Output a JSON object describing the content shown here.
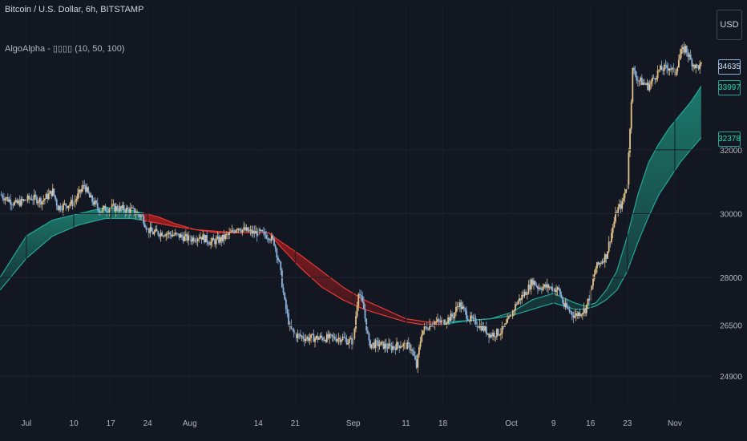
{
  "header": {
    "title": "Bitcoin / U.S. Dollar, 6h, BITSTAMP",
    "indicator": "AlgoAlpha - ▯▯▯▯ (10, 50, 100)",
    "currency_button": "USD"
  },
  "colors": {
    "background": "#131722",
    "candle_up": "#e3c38a",
    "candle_down": "#8fb4de",
    "bull_band": "#26a69a",
    "bull_fill": "#1e8f7c",
    "bear_band": "#e53935",
    "bear_fill": "#b71c1c",
    "text": "#b2b5be"
  },
  "price_tags": [
    {
      "label": "34635",
      "color": "#cfe1f7",
      "border": "#8fb4de",
      "value": 34635
    },
    {
      "label": "33997",
      "color": "#26d9a8",
      "border": "#26a69a",
      "value": 33997
    },
    {
      "label": "32378",
      "color": "#26d9a8",
      "border": "#26a69a",
      "value": 32378
    }
  ],
  "chart_data": {
    "type": "candlestick",
    "title": "Bitcoin / U.S. Dollar, 6h, BITSTAMP",
    "y_axis": {
      "ticks": [
        24900,
        26500,
        28000,
        30000,
        32000
      ],
      "tick_labels": [
        "24900",
        "26500",
        "28000",
        "30000",
        "32000"
      ],
      "ylim": [
        24000,
        36500
      ],
      "position": "right"
    },
    "x_axis": {
      "tick_labels": [
        "Jul",
        "10",
        "17",
        "24",
        "Aug",
        "14",
        "21",
        "Sep",
        "11",
        "18",
        "Oct",
        "9",
        "16",
        "23",
        "Nov"
      ],
      "tick_days": [
        0,
        9,
        16,
        23,
        31,
        44,
        51,
        62,
        72,
        79,
        92,
        100,
        107,
        114,
        123
      ],
      "range_days": [
        -5,
        130
      ]
    },
    "close_path": [
      [
        -5,
        30600
      ],
      [
        -2,
        30300
      ],
      [
        1,
        30500
      ],
      [
        3,
        30400
      ],
      [
        5,
        30700
      ],
      [
        6,
        30200
      ],
      [
        9,
        30350
      ],
      [
        11,
        30900
      ],
      [
        12,
        30500
      ],
      [
        14,
        30100
      ],
      [
        16,
        30200
      ],
      [
        18,
        30150
      ],
      [
        20,
        30100
      ],
      [
        22,
        29900
      ],
      [
        23,
        29500
      ],
      [
        24,
        29400
      ],
      [
        26,
        29400
      ],
      [
        29,
        29300
      ],
      [
        31,
        29200
      ],
      [
        33,
        29300
      ],
      [
        35,
        29100
      ],
      [
        37,
        29200
      ],
      [
        39,
        29400
      ],
      [
        40,
        29600
      ],
      [
        41,
        29500
      ],
      [
        43,
        29400
      ],
      [
        44,
        29400
      ],
      [
        46,
        29300
      ],
      [
        47,
        29100
      ],
      [
        48,
        28400
      ],
      [
        49,
        27200
      ],
      [
        50,
        26400
      ],
      [
        51,
        26200
      ],
      [
        53,
        26100
      ],
      [
        55,
        26100
      ],
      [
        57,
        26100
      ],
      [
        60,
        26100
      ],
      [
        61,
        26000
      ],
      [
        62,
        26000
      ],
      [
        63,
        27600
      ],
      [
        64,
        27000
      ],
      [
        65,
        25900
      ],
      [
        67,
        25900
      ],
      [
        69,
        25800
      ],
      [
        71,
        25900
      ],
      [
        73,
        25800
      ],
      [
        74,
        25200
      ],
      [
        75,
        26300
      ],
      [
        77,
        26600
      ],
      [
        79,
        26600
      ],
      [
        80,
        26700
      ],
      [
        81,
        26800
      ],
      [
        82,
        27200
      ],
      [
        84,
        26700
      ],
      [
        86,
        26500
      ],
      [
        88,
        26200
      ],
      [
        90,
        26300
      ],
      [
        91,
        26500
      ],
      [
        93,
        27200
      ],
      [
        95,
        27600
      ],
      [
        96,
        27900
      ],
      [
        97,
        27700
      ],
      [
        99,
        27700
      ],
      [
        101,
        27600
      ],
      [
        102,
        27100
      ],
      [
        104,
        26800
      ],
      [
        106,
        27000
      ],
      [
        107,
        27500
      ],
      [
        108,
        28300
      ],
      [
        110,
        28700
      ],
      [
        111,
        29400
      ],
      [
        112,
        30100
      ],
      [
        113,
        30300
      ],
      [
        114,
        31000
      ],
      [
        115,
        34500
      ],
      [
        116,
        34200
      ],
      [
        118,
        34000
      ],
      [
        120,
        34500
      ],
      [
        122,
        34600
      ],
      [
        123,
        34400
      ],
      [
        124,
        35000
      ],
      [
        125,
        35200
      ],
      [
        126,
        34800
      ],
      [
        127,
        34600
      ],
      [
        128,
        34635
      ]
    ],
    "series": [
      {
        "name": "",
        "role": "fast band",
        "values": [
          [
            -5,
            28000
          ],
          [
            0,
            29300
          ],
          [
            5,
            29800
          ],
          [
            10,
            30000
          ],
          [
            15,
            30200
          ],
          [
            20,
            30100
          ],
          [
            25,
            29900
          ],
          [
            28,
            29700
          ],
          [
            32,
            29500
          ],
          [
            36,
            29400
          ],
          [
            40,
            29400
          ],
          [
            44,
            29400
          ],
          [
            46,
            29400
          ],
          [
            48,
            29000
          ],
          [
            52,
            28300
          ],
          [
            56,
            27700
          ],
          [
            60,
            27300
          ],
          [
            64,
            27000
          ],
          [
            68,
            26800
          ],
          [
            72,
            26600
          ],
          [
            76,
            26500
          ],
          [
            80,
            26550
          ],
          [
            84,
            26650
          ],
          [
            88,
            26700
          ],
          [
            92,
            26900
          ],
          [
            96,
            27300
          ],
          [
            100,
            27500
          ],
          [
            104,
            27200
          ],
          [
            106,
            27100
          ],
          [
            108,
            27200
          ],
          [
            110,
            27600
          ],
          [
            112,
            28200
          ],
          [
            114,
            29300
          ],
          [
            116,
            30600
          ],
          [
            118,
            31600
          ],
          [
            120,
            32200
          ],
          [
            122,
            32700
          ],
          [
            124,
            33100
          ],
          [
            126,
            33500
          ],
          [
            128,
            33997
          ]
        ]
      },
      {
        "name": "",
        "role": "slow band",
        "values": [
          [
            -5,
            27600
          ],
          [
            0,
            28600
          ],
          [
            5,
            29300
          ],
          [
            10,
            29650
          ],
          [
            15,
            29850
          ],
          [
            20,
            29850
          ],
          [
            25,
            29700
          ],
          [
            28,
            29600
          ],
          [
            32,
            29500
          ],
          [
            36,
            29450
          ],
          [
            40,
            29400
          ],
          [
            44,
            29400
          ],
          [
            46,
            29400
          ],
          [
            48,
            29150
          ],
          [
            52,
            28700
          ],
          [
            56,
            28200
          ],
          [
            60,
            27700
          ],
          [
            64,
            27300
          ],
          [
            68,
            27000
          ],
          [
            72,
            26700
          ],
          [
            76,
            26600
          ],
          [
            80,
            26600
          ],
          [
            84,
            26650
          ],
          [
            88,
            26700
          ],
          [
            92,
            26800
          ],
          [
            96,
            27000
          ],
          [
            100,
            27200
          ],
          [
            104,
            27000
          ],
          [
            106,
            27000
          ],
          [
            108,
            27100
          ],
          [
            110,
            27300
          ],
          [
            112,
            27600
          ],
          [
            114,
            28200
          ],
          [
            116,
            29100
          ],
          [
            118,
            29900
          ],
          [
            120,
            30600
          ],
          [
            122,
            31100
          ],
          [
            124,
            31600
          ],
          [
            126,
            32000
          ],
          [
            128,
            32378
          ]
        ]
      }
    ],
    "trend_regimes": [
      {
        "trend": "bull",
        "from": -5,
        "to": 22
      },
      {
        "trend": "bear",
        "from": 22,
        "to": 79
      },
      {
        "trend": "bull",
        "from": 79,
        "to": 130
      }
    ],
    "last_price": 34635
  }
}
